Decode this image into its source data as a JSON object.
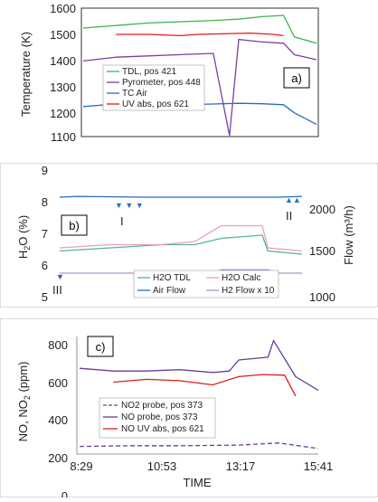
{
  "chart_data": [
    {
      "type": "line",
      "panel_label": "a)",
      "ylabel": "Temperature (K)",
      "ylim": [
        1100,
        1600
      ],
      "yticks": [
        "1600",
        "1500",
        "1400",
        "1300",
        "1200",
        "1100"
      ],
      "legend_position": "lower-left",
      "x_time_range": [
        "8:29",
        "15:41"
      ],
      "series": [
        {
          "name": "TDL, pos 421",
          "color": "#3cb44b",
          "points": [
            [
              "8:29",
              1525
            ],
            [
              "9:30",
              1535
            ],
            [
              "10:30",
              1545
            ],
            [
              "11:30",
              1550
            ],
            [
              "12:30",
              1555
            ],
            [
              "13:17",
              1560
            ],
            [
              "14:00",
              1570
            ],
            [
              "14:40",
              1575
            ],
            [
              "15:00",
              1490
            ],
            [
              "15:41",
              1465
            ]
          ]
        },
        {
          "name": "Pyrometer, pos 448",
          "color": "#7b3f9e",
          "points": [
            [
              "8:29",
              1395
            ],
            [
              "9:30",
              1410
            ],
            [
              "10:30",
              1415
            ],
            [
              "11:30",
              1420
            ],
            [
              "12:30",
              1425
            ],
            [
              "13:00",
              1100
            ],
            [
              "13:17",
              1480
            ],
            [
              "14:00",
              1470
            ],
            [
              "14:40",
              1465
            ],
            [
              "15:00",
              1420
            ],
            [
              "15:41",
              1400
            ]
          ]
        },
        {
          "name": "TC Air",
          "color": "#1f6fbf",
          "points": [
            [
              "8:29",
              1215
            ],
            [
              "9:30",
              1225
            ],
            [
              "10:30",
              1225
            ],
            [
              "11:30",
              1222
            ],
            [
              "12:30",
              1225
            ],
            [
              "13:17",
              1228
            ],
            [
              "14:00",
              1226
            ],
            [
              "14:40",
              1222
            ],
            [
              "15:00",
              1190
            ],
            [
              "15:41",
              1145
            ]
          ]
        },
        {
          "name": "UV abs, pos 621",
          "color": "#e41a1c",
          "points": [
            [
              "9:30",
              1500
            ],
            [
              "10:30",
              1500
            ],
            [
              "11:30",
              1495
            ],
            [
              "12:00",
              1500
            ],
            [
              "13:40",
              1505
            ],
            [
              "14:20",
              1500
            ],
            [
              "14:40",
              1495
            ]
          ]
        }
      ]
    },
    {
      "type": "line",
      "panel_label": "b)",
      "ylabel": "H2O (%)",
      "y2label": "Flow (m³/h)",
      "ylim": [
        5,
        9
      ],
      "y2lim": [
        1000,
        2500
      ],
      "yticks": [
        "9",
        "8",
        "7",
        "6",
        "5"
      ],
      "y2ticks": [
        "2000",
        "1500",
        "1000"
      ],
      "annotations": [
        "I",
        "II",
        "III"
      ],
      "series": [
        {
          "name": "H2O TDL",
          "color": "#52b788",
          "points": [
            [
              "8:29",
              6.5
            ],
            [
              "10:00",
              6.6
            ],
            [
              "11:30",
              6.7
            ],
            [
              "12:30",
              6.7
            ],
            [
              "13:17",
              6.9
            ],
            [
              "14:30",
              7.0
            ],
            [
              "14:40",
              6.5
            ],
            [
              "15:41",
              6.4
            ]
          ]
        },
        {
          "name": "H2O Calc",
          "color": "#e8a0b8",
          "points": [
            [
              "8:29",
              6.6
            ],
            [
              "10:00",
              6.7
            ],
            [
              "11:30",
              6.7
            ],
            [
              "12:30",
              6.8
            ],
            [
              "13:17",
              7.3
            ],
            [
              "14:30",
              7.3
            ],
            [
              "14:40",
              6.6
            ],
            [
              "15:41",
              6.5
            ]
          ]
        },
        {
          "name": "Air Flow",
          "color": "#1f6fbf",
          "axis": "right",
          "points": [
            [
              "8:29",
              2200
            ],
            [
              "9:00",
              2210
            ],
            [
              "11:00",
              2200
            ],
            [
              "13:00",
              2200
            ],
            [
              "15:00",
              2200
            ],
            [
              "15:41",
              2210
            ]
          ]
        },
        {
          "name": "H2 Flow x 10",
          "color": "#b090d0",
          "axis": "right",
          "points": [
            [
              "8:29",
              1300
            ],
            [
              "13:00",
              1300
            ],
            [
              "13:17",
              1340
            ],
            [
              "14:40",
              1340
            ],
            [
              "15:00",
              1300
            ],
            [
              "15:41",
              1300
            ]
          ]
        }
      ]
    },
    {
      "type": "line",
      "panel_label": "c)",
      "ylabel": "NO, NO2 (ppm)",
      "xlabel": "TIME",
      "ylim": [
        0,
        850
      ],
      "yticks": [
        "800",
        "600",
        "400",
        "200",
        "0"
      ],
      "xticks": [
        "8:29",
        "10:53",
        "13:17",
        "15:41"
      ],
      "series": [
        {
          "name": "NO2 probe, pos 373",
          "color": "#6a3d9a",
          "dashed": true,
          "points": [
            [
              "8:29",
              55
            ],
            [
              "10:00",
              60
            ],
            [
              "11:30",
              60
            ],
            [
              "13:17",
              65
            ],
            [
              "14:30",
              80
            ],
            [
              "15:41",
              40
            ]
          ]
        },
        {
          "name": "NO probe, pos 373",
          "color": "#6a3d9a",
          "points": [
            [
              "8:29",
              620
            ],
            [
              "9:30",
              600
            ],
            [
              "10:30",
              600
            ],
            [
              "11:30",
              610
            ],
            [
              "12:30",
              590
            ],
            [
              "13:00",
              600
            ],
            [
              "13:17",
              680
            ],
            [
              "14:10",
              700
            ],
            [
              "14:20",
              820
            ],
            [
              "14:40",
              690
            ],
            [
              "15:00",
              560
            ],
            [
              "15:41",
              460
            ]
          ]
        },
        {
          "name": "NO UV abs, pos 621",
          "color": "#e41a1c",
          "points": [
            [
              "9:30",
              520
            ],
            [
              "10:30",
              540
            ],
            [
              "11:30",
              530
            ],
            [
              "12:30",
              500
            ],
            [
              "13:17",
              560
            ],
            [
              "14:00",
              575
            ],
            [
              "14:40",
              570
            ],
            [
              "15:00",
              420
            ]
          ]
        }
      ]
    }
  ],
  "panel_a": {
    "label": "a)",
    "legend": [
      "TDL, pos 421",
      "Pyrometer, pos 448",
      "TC Air",
      "UV abs, pos 621"
    ],
    "ylabel": "Temperature (K)",
    "yticks": [
      "1600",
      "1500",
      "1400",
      "1300",
      "1200",
      "1100"
    ]
  },
  "panel_b": {
    "label": "b)",
    "ylabel": "H2O (%)",
    "y2label": "Flow (m³/h)",
    "yticks": [
      "9",
      "8",
      "7",
      "6",
      "5"
    ],
    "y2ticks": [
      "2000",
      "1500",
      "1000"
    ],
    "legend": [
      "H2O TDL",
      "H2O Calc",
      "Air Flow",
      "H2 Flow x 10"
    ],
    "ann_I": "I",
    "ann_II": "II",
    "ann_III": "III"
  },
  "panel_c": {
    "label": "c)",
    "ylabel": "NO, NO2 (ppm)",
    "xlabel": "TIME",
    "yticks": [
      "800",
      "600",
      "400",
      "200",
      "0"
    ],
    "xticks": [
      "8:29",
      "10:53",
      "13:17",
      "15:41"
    ],
    "legend": [
      "NO2 probe, pos 373",
      "NO probe, pos 373",
      "NO UV abs, pos 621"
    ]
  }
}
